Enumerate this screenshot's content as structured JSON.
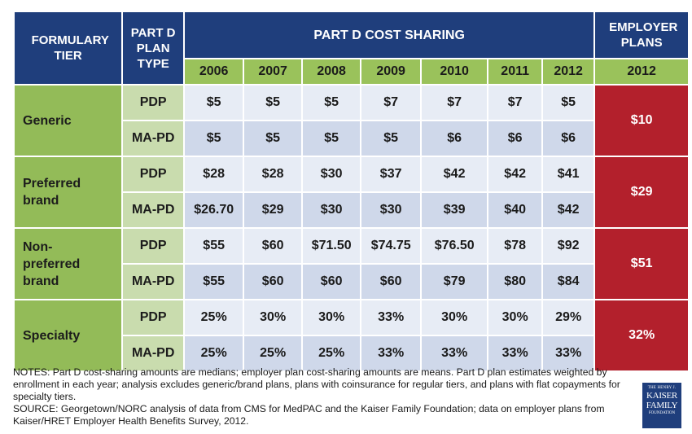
{
  "chart_data": {
    "type": "table",
    "headers": {
      "formulary_tier": "FORMULARY TIER",
      "plan_type": "PART D PLAN TYPE",
      "part_d_cost_sharing": "PART D COST SHARING",
      "employer_plans": "EMPLOYER PLANS",
      "years": [
        "2006",
        "2007",
        "2008",
        "2009",
        "2010",
        "2011",
        "2012"
      ],
      "employer_year": "2012"
    },
    "tiers": [
      {
        "name": "Generic",
        "employer": "$10",
        "rows": [
          {
            "plan": "PDP",
            "values": [
              "$5",
              "$5",
              "$5",
              "$7",
              "$7",
              "$7",
              "$5"
            ]
          },
          {
            "plan": "MA-PD",
            "values": [
              "$5",
              "$5",
              "$5",
              "$5",
              "$6",
              "$6",
              "$6"
            ]
          }
        ]
      },
      {
        "name": "Preferred brand",
        "employer": "$29",
        "rows": [
          {
            "plan": "PDP",
            "values": [
              "$28",
              "$28",
              "$30",
              "$37",
              "$42",
              "$42",
              "$41"
            ]
          },
          {
            "plan": "MA-PD",
            "values": [
              "$26.70",
              "$29",
              "$30",
              "$30",
              "$39",
              "$40",
              "$42"
            ]
          }
        ]
      },
      {
        "name": "Non-preferred brand",
        "employer": "$51",
        "rows": [
          {
            "plan": "PDP",
            "values": [
              "$55",
              "$60",
              "$71.50",
              "$74.75",
              "$76.50",
              "$78",
              "$92"
            ]
          },
          {
            "plan": "MA-PD",
            "values": [
              "$55",
              "$60",
              "$60",
              "$60",
              "$79",
              "$80",
              "$84"
            ]
          }
        ]
      },
      {
        "name": "Specialty",
        "employer": "32%",
        "rows": [
          {
            "plan": "PDP",
            "values": [
              "25%",
              "30%",
              "30%",
              "33%",
              "30%",
              "30%",
              "29%"
            ]
          },
          {
            "plan": "MA-PD",
            "values": [
              "25%",
              "25%",
              "25%",
              "33%",
              "33%",
              "33%",
              "33%"
            ]
          }
        ]
      }
    ],
    "notes": "NOTES: Part D cost-sharing amounts are medians; employer plan cost-sharing amounts are means.  Part D plan estimates weighted by enrollment in each year; analysis excludes generic/brand plans, plans with coinsurance for regular tiers, and plans with flat copayments for specialty tiers.",
    "source": "SOURCE: Georgetown/NORC analysis of data from CMS for MedPAC and the Kaiser Family Foundation; data on employer plans from Kaiser/HRET Employer Health Benefits Survey, 2012."
  },
  "logo": {
    "line1": "THE HENRY J.",
    "line2": "KAISER",
    "line3": "FAMILY",
    "line4": "FOUNDATION"
  },
  "colors": {
    "header_blue": "#1f3e7c",
    "year_green": "#9ac25b",
    "tier_green": "#93bb58",
    "plan_green": "#c9dcae",
    "row_light": "#e7ecf5",
    "row_dark": "#cfd8ea",
    "employer_red": "#b3202c"
  }
}
